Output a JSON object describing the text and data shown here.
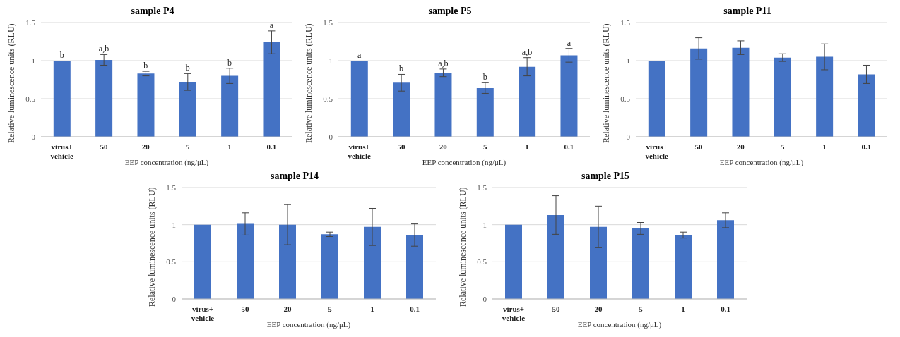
{
  "chart_data": [
    {
      "type": "bar",
      "title": "sample P4",
      "xlabel": "EEP concentration (ng/μL)",
      "ylabel": "Relative luminescence units (RLU)",
      "categories": [
        "virus+\nvehicle",
        "50",
        "20",
        "5",
        "1",
        "0.1"
      ],
      "values": [
        1.0,
        1.01,
        0.83,
        0.72,
        0.8,
        1.24
      ],
      "errors": [
        null,
        0.07,
        0.03,
        0.11,
        0.1,
        0.15
      ],
      "color": "#4472c4",
      "ylim": [
        0,
        1.5
      ],
      "yticks": [
        0,
        0.5,
        1,
        1.5
      ],
      "grid": "y",
      "annotations": [
        {
          "text": "b",
          "x": "virus+\nvehicle",
          "y": 1.0
        },
        {
          "text": "a,b",
          "x": "50",
          "y": 1.08
        },
        {
          "text": "b",
          "x": "20",
          "y": 0.86
        },
        {
          "text": "b",
          "x": "5",
          "y": 0.83
        },
        {
          "text": "b",
          "x": "1",
          "y": 0.9
        },
        {
          "text": "a",
          "x": "0.1",
          "y": 1.39
        }
      ]
    },
    {
      "type": "bar",
      "title": "sample P5",
      "xlabel": "EEP concentration (ng/μL)",
      "ylabel": "Relative luminescence units (RLU)",
      "categories": [
        "virus+\nvehicle",
        "50",
        "20",
        "5",
        "1",
        "0.1"
      ],
      "values": [
        1.0,
        0.71,
        0.84,
        0.64,
        0.92,
        1.07
      ],
      "errors": [
        null,
        0.11,
        0.05,
        0.07,
        0.12,
        0.09
      ],
      "color": "#4472c4",
      "ylim": [
        0,
        1.5
      ],
      "yticks": [
        0,
        0.5,
        1,
        1.5
      ],
      "grid": "y",
      "annotations": [
        {
          "text": "a",
          "x": "virus+\nvehicle",
          "y": 1.0
        },
        {
          "text": "b",
          "x": "50",
          "y": 0.82
        },
        {
          "text": "a,b",
          "x": "20",
          "y": 0.89
        },
        {
          "text": "b",
          "x": "5",
          "y": 0.71
        },
        {
          "text": "a,b",
          "x": "1",
          "y": 1.04
        },
        {
          "text": "a",
          "x": "0.1",
          "y": 1.16
        }
      ]
    },
    {
      "type": "bar",
      "title": "sample P11",
      "xlabel": "EEP concentration (ng/μL)",
      "ylabel": "Relative luminescence units (RLU)",
      "categories": [
        "virus+\nvehicle",
        "50",
        "20",
        "5",
        "1",
        "0.1"
      ],
      "values": [
        1.0,
        1.16,
        1.17,
        1.04,
        1.05,
        0.82
      ],
      "errors": [
        null,
        0.14,
        0.09,
        0.05,
        0.17,
        0.12
      ],
      "color": "#4472c4",
      "ylim": [
        0,
        1.5
      ],
      "yticks": [
        0,
        0.5,
        1,
        1.5
      ],
      "grid": "y"
    },
    {
      "type": "bar",
      "title": "sample P14",
      "xlabel": "EEP concentration (ng/μL)",
      "ylabel": "Relative luminescence units (RLU)",
      "categories": [
        "virus+\nvehicle",
        "50",
        "20",
        "5",
        "1",
        "0.1"
      ],
      "values": [
        1.0,
        1.01,
        1.0,
        0.87,
        0.97,
        0.86
      ],
      "errors": [
        null,
        0.15,
        0.27,
        0.03,
        0.25,
        0.15
      ],
      "color": "#4472c4",
      "ylim": [
        0,
        1.5
      ],
      "yticks": [
        0,
        0.5,
        1,
        1.5
      ],
      "grid": "y"
    },
    {
      "type": "bar",
      "title": "sample P15",
      "xlabel": "EEP concentration (ng/μL)",
      "ylabel": "Relative luminescence units (RLU)",
      "categories": [
        "virus+\nvehicle",
        "50",
        "20",
        "5",
        "1",
        "0.1"
      ],
      "values": [
        1.0,
        1.13,
        0.97,
        0.95,
        0.86,
        1.06
      ],
      "errors": [
        null,
        0.26,
        0.28,
        0.08,
        0.04,
        0.1
      ],
      "color": "#4472c4",
      "ylim": [
        0,
        1.5
      ],
      "yticks": [
        0,
        0.5,
        1,
        1.5
      ],
      "grid": "y"
    }
  ]
}
